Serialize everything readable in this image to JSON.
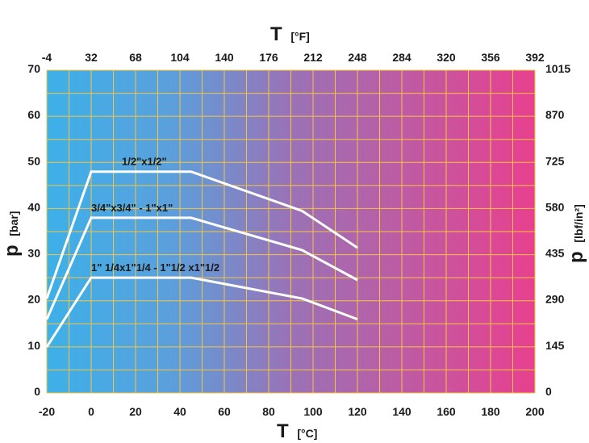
{
  "chart_data": {
    "type": "line",
    "title": "",
    "x_axis_bottom": {
      "symbol": "T",
      "unit": "[°C]",
      "ticks": [
        "-20",
        "0",
        "20",
        "40",
        "60",
        "80",
        "100",
        "120",
        "140",
        "160",
        "180",
        "200"
      ],
      "range": [
        -20,
        200
      ]
    },
    "x_axis_top": {
      "symbol": "T",
      "unit": "[°F]",
      "ticks": [
        "-4",
        "32",
        "68",
        "104",
        "140",
        "176",
        "212",
        "248",
        "284",
        "320",
        "356",
        "392"
      ]
    },
    "y_axis_left": {
      "symbol": "p",
      "unit": "[bar]",
      "ticks": [
        "0",
        "10",
        "20",
        "30",
        "40",
        "50",
        "60",
        "70"
      ],
      "range": [
        0,
        70
      ]
    },
    "y_axis_right": {
      "symbol": "p",
      "unit": "[lbf/in²]",
      "ticks": [
        "0",
        "145",
        "290",
        "435",
        "580",
        "725",
        "870",
        "1015"
      ]
    },
    "grid": true,
    "background_gradient": [
      "#3db0e8",
      "#e8408e"
    ],
    "grid_color": "#f5c542",
    "line_color": "#ffffff",
    "series": [
      {
        "name": "1/2\"x1/2\"",
        "points": [
          [
            -20,
            20.5
          ],
          [
            0,
            48
          ],
          [
            45,
            48
          ],
          [
            95,
            39.5
          ],
          [
            120,
            31.5
          ]
        ]
      },
      {
        "name": "3/4\"x3/4\" - 1\"x1\"",
        "points": [
          [
            -20,
            16
          ],
          [
            0,
            38
          ],
          [
            45,
            38
          ],
          [
            95,
            31
          ],
          [
            120,
            24.5
          ]
        ]
      },
      {
        "name": "1\" 1/4x1\"1/4 - 1\"1/2 x1\"1/2",
        "points": [
          [
            -20,
            10
          ],
          [
            0,
            25
          ],
          [
            45,
            25
          ],
          [
            95,
            20.5
          ],
          [
            120,
            16
          ]
        ]
      }
    ]
  }
}
